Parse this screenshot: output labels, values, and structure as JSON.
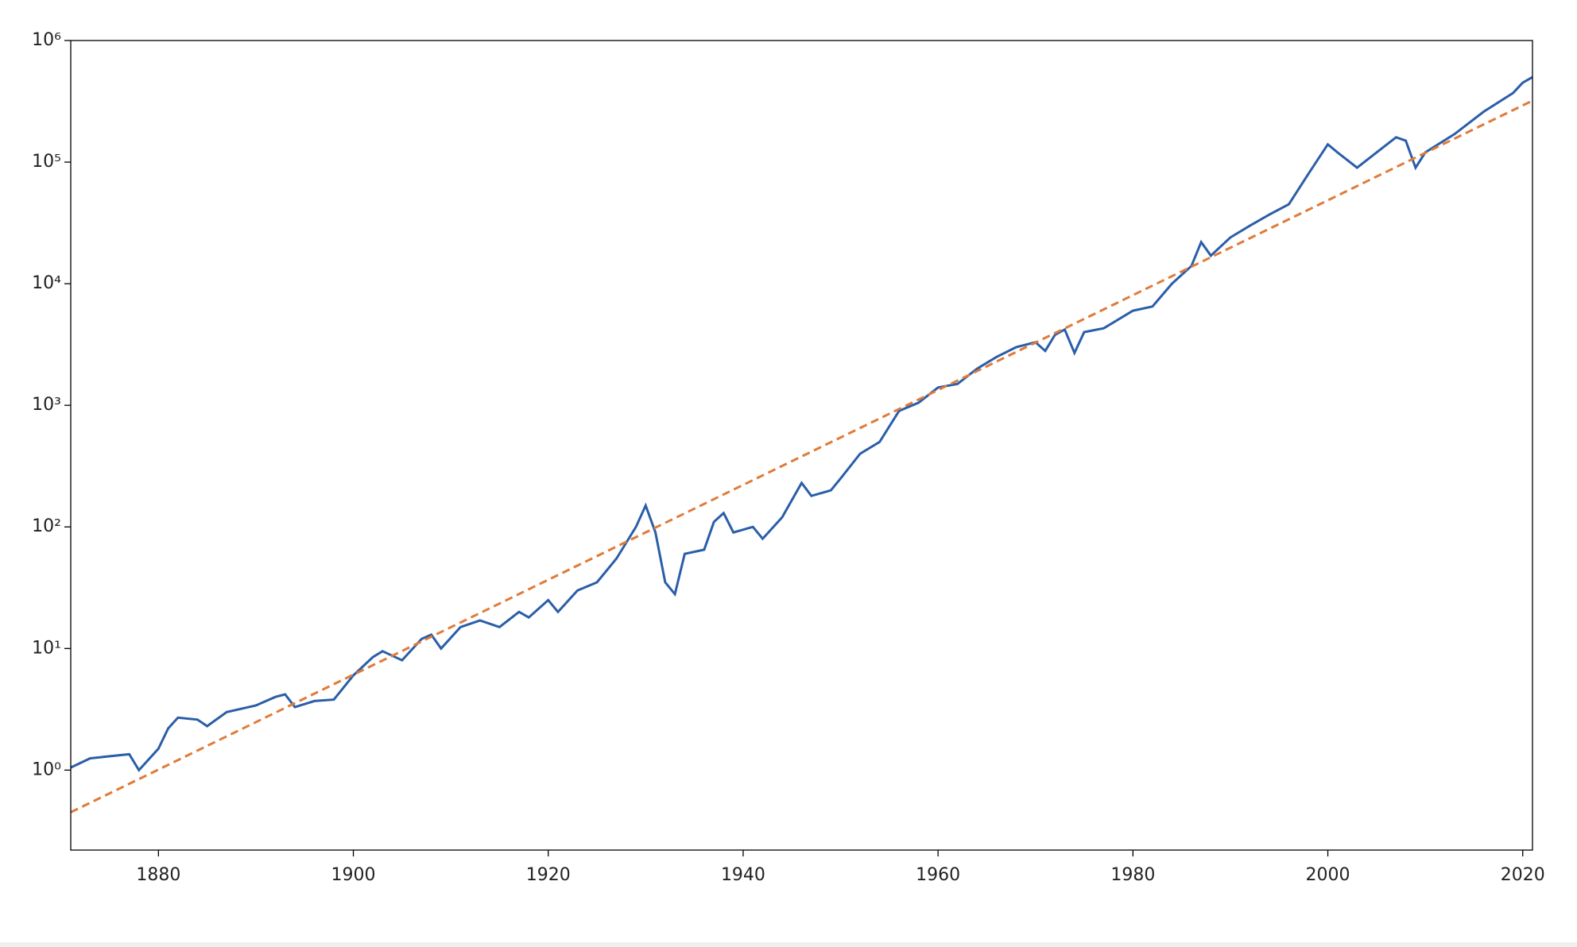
{
  "chart_data": {
    "type": "line",
    "log_y": true,
    "xlim": [
      1871,
      2021
    ],
    "xticks": [
      1880,
      1900,
      1920,
      1940,
      1960,
      1980,
      2000,
      2020
    ],
    "ylim": [
      0.22,
      1000000
    ],
    "yticks": [
      {
        "value": 1,
        "label": "10⁰"
      },
      {
        "value": 10,
        "label": "10¹"
      },
      {
        "value": 100,
        "label": "10²"
      },
      {
        "value": 1000,
        "label": "10³"
      },
      {
        "value": 10000,
        "label": "10⁴"
      },
      {
        "value": 100000,
        "label": "10⁵"
      },
      {
        "value": 1000000,
        "label": "10⁶"
      }
    ],
    "series": [
      {
        "color": "#2a5ea8",
        "style": "solid",
        "x": [
          1871,
          1873,
          1875,
          1877,
          1878,
          1880,
          1881,
          1882,
          1884,
          1885,
          1887,
          1890,
          1892,
          1893,
          1894,
          1896,
          1898,
          1900,
          1902,
          1903,
          1905,
          1907,
          1908,
          1909,
          1911,
          1913,
          1915,
          1917,
          1918,
          1920,
          1921,
          1923,
          1925,
          1927,
          1929,
          1930,
          1931,
          1932,
          1933,
          1934,
          1936,
          1937,
          1938,
          1939,
          1941,
          1942,
          1944,
          1946,
          1947,
          1949,
          1950,
          1952,
          1954,
          1956,
          1958,
          1960,
          1962,
          1964,
          1966,
          1968,
          1970,
          1971,
          1972,
          1973,
          1974,
          1975,
          1977,
          1980,
          1982,
          1984,
          1986,
          1987,
          1988,
          1990,
          1992,
          1994,
          1996,
          1998,
          2000,
          2001,
          2003,
          2005,
          2007,
          2008,
          2009,
          2010,
          2013,
          2016,
          2019,
          2020,
          2021
        ],
        "values": [
          1.05,
          1.25,
          1.3,
          1.35,
          1.0,
          1.5,
          2.2,
          2.7,
          2.6,
          2.3,
          3.0,
          3.4,
          4.0,
          4.2,
          3.3,
          3.7,
          3.8,
          6.0,
          8.5,
          9.5,
          8.0,
          12,
          13,
          10,
          15,
          17,
          15,
          20,
          18,
          25,
          20,
          30,
          35,
          55,
          100,
          150,
          90,
          35,
          28,
          60,
          65,
          110,
          130,
          90,
          100,
          80,
          120,
          230,
          180,
          200,
          250,
          400,
          500,
          900,
          1050,
          1400,
          1500,
          2000,
          2500,
          3000,
          3300,
          2800,
          3800,
          4200,
          2700,
          4000,
          4300,
          6000,
          6500,
          10000,
          14000,
          22000,
          17000,
          24000,
          30000,
          37000,
          45000,
          80000,
          140000,
          120000,
          90000,
          120000,
          160000,
          150000,
          90000,
          120000,
          170000,
          260000,
          370000,
          450000,
          500000
        ]
      },
      {
        "color": "#e07b39",
        "style": "dashed",
        "x": [
          1871,
          2021
        ],
        "values": [
          0.45,
          320000
        ]
      }
    ]
  }
}
